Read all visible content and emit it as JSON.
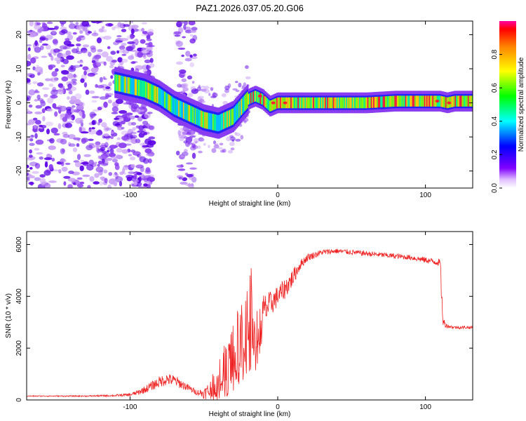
{
  "title": "PAZ1.2026.037.05.20.G06",
  "chart_data": [
    {
      "type": "heatmap",
      "name": "spectrogram",
      "xlabel": "Height of straight line (km)",
      "ylabel": "Frequency (Hz)",
      "xlim": [
        -170,
        132
      ],
      "ylim": [
        -25,
        24
      ],
      "xticks": [
        -100,
        0,
        100
      ],
      "yticks": [
        -20,
        -10,
        0,
        10,
        20
      ],
      "colorbar": {
        "label": "Normalized spectral amplitude",
        "range": [
          0,
          1
        ],
        "ticks": [
          "0.0",
          "0.2",
          "0.4",
          "0.6",
          "0.8"
        ]
      },
      "ridge": {
        "x": [
          -110,
          -100,
          -90,
          -80,
          -70,
          -60,
          -50,
          -40,
          -30,
          -20,
          -15,
          -10,
          -5,
          0,
          20,
          40,
          60,
          80,
          100,
          110,
          115,
          120,
          132
        ],
        "y": [
          6,
          5,
          4,
          2,
          -1,
          -3,
          -5,
          -6,
          -4,
          1,
          2,
          1,
          -1,
          0,
          0,
          0,
          0,
          0.5,
          0.5,
          0.5,
          0,
          0.5,
          0.5
        ]
      }
    },
    {
      "type": "line",
      "name": "snr",
      "xlabel": "Height of straight line (km)",
      "ylabel": "SNR (10 * v/v)",
      "xlim": [
        -170,
        132
      ],
      "ylim": [
        0,
        6500
      ],
      "xticks": [
        -100,
        0,
        100
      ],
      "yticks": [
        0,
        2000,
        4000,
        6000
      ],
      "color": "#ee2222",
      "x": [
        -170,
        -150,
        -130,
        -110,
        -100,
        -95,
        -90,
        -85,
        -80,
        -75,
        -70,
        -65,
        -60,
        -55,
        -50,
        -45,
        -40,
        -35,
        -30,
        -25,
        -20,
        -18,
        -15,
        -10,
        -5,
        0,
        5,
        10,
        15,
        20,
        30,
        40,
        50,
        60,
        70,
        80,
        90,
        100,
        105,
        110,
        111,
        112,
        115,
        120,
        125,
        132
      ],
      "y": [
        150,
        150,
        150,
        170,
        200,
        280,
        400,
        550,
        700,
        800,
        750,
        600,
        450,
        300,
        250,
        400,
        900,
        1400,
        2000,
        2500,
        3200,
        3600,
        2400,
        3400,
        3700,
        4000,
        4300,
        4700,
        5200,
        5500,
        5700,
        5750,
        5700,
        5650,
        5600,
        5550,
        5500,
        5400,
        5350,
        5300,
        4000,
        3000,
        2850,
        2800,
        2800,
        2800
      ],
      "jitter": [
        20,
        20,
        25,
        40,
        60,
        100,
        140,
        180,
        220,
        230,
        220,
        180,
        130,
        100,
        200,
        450,
        700,
        900,
        1100,
        1300,
        1500,
        1700,
        900,
        700,
        500,
        400,
        400,
        350,
        200,
        150,
        110,
        100,
        100,
        100,
        100,
        100,
        100,
        120,
        120,
        150,
        400,
        200,
        70,
        60,
        60,
        60
      ]
    }
  ]
}
